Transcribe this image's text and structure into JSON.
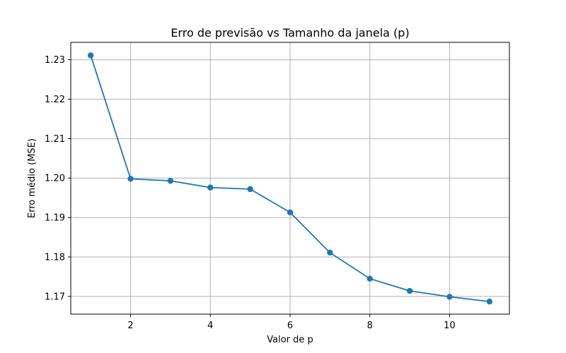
{
  "chart_data": {
    "type": "line",
    "title": "Erro de previsão vs Tamanho da janela (p)",
    "xlabel": "Valor de p",
    "ylabel": "Erro médio (MSE)",
    "x": [
      1,
      2,
      3,
      4,
      5,
      6,
      7,
      8,
      9,
      10,
      11
    ],
    "series": [
      {
        "values": [
          1.2311,
          1.1998,
          1.1993,
          1.1976,
          1.1972,
          1.1913,
          1.1811,
          1.1745,
          1.1714,
          1.1699,
          1.1687
        ]
      }
    ],
    "xlim": [
      0.5,
      11.5
    ],
    "ylim": [
      1.1655,
      1.2344
    ],
    "xticks": [
      2,
      4,
      6,
      8,
      10
    ],
    "yticks": [
      1.17,
      1.18,
      1.19,
      1.2,
      1.21,
      1.22,
      1.23
    ],
    "xtick_labels": [
      "2",
      "4",
      "6",
      "8",
      "10"
    ],
    "ytick_labels": [
      "1.17",
      "1.18",
      "1.19",
      "1.20",
      "1.21",
      "1.22",
      "1.23"
    ],
    "grid": true,
    "line_color": "#1f77b4",
    "grid_color": "#b0b0b0"
  }
}
